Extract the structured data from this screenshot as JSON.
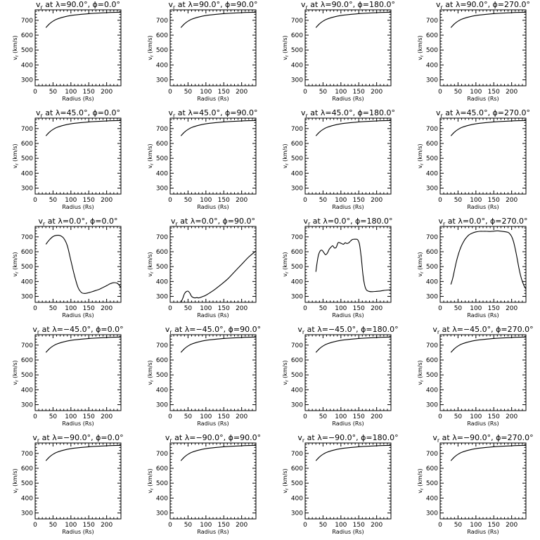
{
  "figure": {
    "xlabel": "Radius (Rs)",
    "ylabel": "v",
    "ylabel_sub": "r",
    "ylabel_unit": " (km/s)",
    "x_ticks": [
      0,
      50,
      100,
      150,
      200
    ],
    "y_ticks": [
      300,
      400,
      500,
      600,
      700
    ],
    "xlim": [
      0,
      240
    ],
    "ylim": [
      260,
      770
    ]
  },
  "chart_data": [
    {
      "type": "line",
      "title": "vr at λ=90.0°, ϕ=0.0°",
      "lat": "90.0",
      "lon": "0.0",
      "x": [
        30,
        40,
        50,
        60,
        80,
        100,
        130,
        160,
        200,
        240
      ],
      "y": [
        651,
        676,
        694,
        707,
        722,
        732,
        740,
        746,
        751,
        754
      ],
      "xlim": [
        0,
        240
      ],
      "ylim": [
        260,
        770
      ],
      "xlabel": "Radius (Rs)",
      "ylabel": "vr (km/s)"
    },
    {
      "type": "line",
      "title": "vr at λ=90.0°, ϕ=90.0°",
      "lat": "90.0",
      "lon": "90.0",
      "x": [
        30,
        40,
        50,
        60,
        80,
        100,
        130,
        160,
        200,
        240
      ],
      "y": [
        651,
        676,
        694,
        707,
        722,
        732,
        740,
        746,
        751,
        754
      ],
      "xlim": [
        0,
        240
      ],
      "ylim": [
        260,
        770
      ],
      "xlabel": "Radius (Rs)",
      "ylabel": "vr (km/s)"
    },
    {
      "type": "line",
      "title": "vr at λ=90.0°, ϕ=180.0°",
      "lat": "90.0",
      "lon": "180.0",
      "x": [
        30,
        40,
        50,
        60,
        80,
        100,
        130,
        160,
        200,
        240
      ],
      "y": [
        651,
        676,
        694,
        707,
        722,
        732,
        740,
        746,
        751,
        754
      ],
      "xlim": [
        0,
        240
      ],
      "ylim": [
        260,
        770
      ],
      "xlabel": "Radius (Rs)",
      "ylabel": "vr (km/s)"
    },
    {
      "type": "line",
      "title": "vr at λ=90.0°, ϕ=270.0°",
      "lat": "90.0",
      "lon": "270.0",
      "x": [
        30,
        40,
        50,
        60,
        80,
        100,
        130,
        160,
        200,
        240
      ],
      "y": [
        651,
        676,
        694,
        707,
        722,
        732,
        740,
        746,
        751,
        754
      ],
      "xlim": [
        0,
        240
      ],
      "ylim": [
        260,
        770
      ],
      "xlabel": "Radius (Rs)",
      "ylabel": "vr (km/s)"
    },
    {
      "type": "line",
      "title": "vr at λ=45.0°, ϕ=0.0°",
      "lat": "45.0",
      "lon": "0.0",
      "x": [
        30,
        40,
        50,
        60,
        80,
        100,
        130,
        160,
        200,
        240
      ],
      "y": [
        651,
        676,
        694,
        707,
        722,
        732,
        740,
        746,
        751,
        754
      ],
      "xlim": [
        0,
        240
      ],
      "ylim": [
        260,
        770
      ],
      "xlabel": "Radius (Rs)",
      "ylabel": "vr (km/s)"
    },
    {
      "type": "line",
      "title": "vr at λ=45.0°, ϕ=90.0°",
      "lat": "45.0",
      "lon": "90.0",
      "x": [
        30,
        40,
        50,
        60,
        80,
        100,
        130,
        160,
        200,
        240
      ],
      "y": [
        651,
        676,
        694,
        707,
        722,
        732,
        740,
        746,
        751,
        754
      ],
      "xlim": [
        0,
        240
      ],
      "ylim": [
        260,
        770
      ],
      "xlabel": "Radius (Rs)",
      "ylabel": "vr (km/s)"
    },
    {
      "type": "line",
      "title": "vr at λ=45.0°, ϕ=180.0°",
      "lat": "45.0",
      "lon": "180.0",
      "x": [
        30,
        40,
        50,
        60,
        80,
        100,
        130,
        160,
        200,
        240
      ],
      "y": [
        651,
        676,
        694,
        707,
        722,
        732,
        740,
        746,
        751,
        754
      ],
      "xlim": [
        0,
        240
      ],
      "ylim": [
        260,
        770
      ],
      "xlabel": "Radius (Rs)",
      "ylabel": "vr (km/s)"
    },
    {
      "type": "line",
      "title": "vr at λ=45.0°, ϕ=270.0°",
      "lat": "45.0",
      "lon": "270.0",
      "x": [
        30,
        40,
        50,
        60,
        80,
        100,
        130,
        160,
        200,
        240
      ],
      "y": [
        651,
        676,
        694,
        707,
        722,
        732,
        740,
        746,
        751,
        754
      ],
      "xlim": [
        0,
        240
      ],
      "ylim": [
        260,
        770
      ],
      "xlabel": "Radius (Rs)",
      "ylabel": "vr (km/s)"
    },
    {
      "type": "line",
      "title": "vr at λ=0.0°, ϕ=0.0°",
      "lat": "0.0",
      "lon": "0.0",
      "x": [
        30,
        40,
        50,
        60,
        70,
        80,
        90,
        100,
        110,
        120,
        130,
        140,
        150,
        160,
        170,
        180,
        190,
        200,
        210,
        220,
        230,
        240
      ],
      "y": [
        650,
        680,
        702,
        710,
        708,
        690,
        640,
        540,
        440,
        360,
        325,
        320,
        325,
        332,
        340,
        348,
        360,
        372,
        385,
        392,
        388,
        360
      ],
      "xlim": [
        0,
        240
      ],
      "ylim": [
        260,
        770
      ],
      "xlabel": "Radius (Rs)",
      "ylabel": "vr (km/s)"
    },
    {
      "type": "line",
      "title": "vr at λ=0.0°, ϕ=90.0°",
      "lat": "0.0",
      "lon": "90.0",
      "x": [
        30,
        35,
        40,
        45,
        50,
        55,
        60,
        65,
        70,
        75,
        80,
        90,
        100,
        120,
        140,
        160,
        180,
        200,
        220,
        240
      ],
      "y": [
        260,
        285,
        318,
        332,
        335,
        322,
        300,
        292,
        290,
        292,
        290,
        298,
        308,
        338,
        375,
        415,
        465,
        515,
        565,
        605
      ],
      "xlim": [
        0,
        240
      ],
      "ylim": [
        260,
        770
      ],
      "xlabel": "Radius (Rs)",
      "ylabel": "vr (km/s)"
    },
    {
      "type": "line",
      "title": "vr at λ=0.0°, ϕ=180.0°",
      "lat": "0.0",
      "lon": "180.0",
      "x": [
        30,
        33,
        37,
        42,
        47,
        52,
        57,
        62,
        67,
        72,
        77,
        82,
        87,
        92,
        97,
        102,
        107,
        112,
        117,
        122,
        127,
        132,
        137,
        142,
        147,
        152,
        157,
        162,
        167,
        172,
        180,
        190,
        200,
        210,
        220,
        240
      ],
      "y": [
        465,
        520,
        575,
        605,
        610,
        595,
        580,
        590,
        615,
        630,
        640,
        625,
        630,
        660,
        660,
        655,
        650,
        660,
        655,
        660,
        672,
        682,
        684,
        684,
        680,
        650,
        560,
        440,
        370,
        342,
        333,
        332,
        334,
        336,
        340,
        345
      ],
      "xlim": [
        0,
        240
      ],
      "ylim": [
        260,
        770
      ],
      "xlabel": "Radius (Rs)",
      "ylabel": "vr (km/s)"
    },
    {
      "type": "line",
      "title": "vr at λ=0.0°, ϕ=270.0°",
      "lat": "0.0",
      "lon": "270.0",
      "x": [
        30,
        35,
        40,
        45,
        50,
        55,
        60,
        65,
        70,
        80,
        90,
        100,
        110,
        120,
        130,
        140,
        150,
        160,
        170,
        180,
        190,
        195,
        200,
        205,
        210,
        215,
        220,
        225,
        230,
        235,
        240
      ],
      "y": [
        380,
        420,
        475,
        530,
        575,
        612,
        642,
        665,
        685,
        712,
        725,
        733,
        737,
        737,
        737,
        736,
        738,
        740,
        738,
        735,
        730,
        720,
        702,
        670,
        620,
        560,
        495,
        440,
        400,
        370,
        350
      ],
      "xlim": [
        0,
        240
      ],
      "ylim": [
        260,
        770
      ],
      "xlabel": "Radius (Rs)",
      "ylabel": "vr (km/s)"
    },
    {
      "type": "line",
      "title": "vr at λ=−45.0°, ϕ=0.0°",
      "lat": "−45.0",
      "lon": "0.0",
      "x": [
        30,
        40,
        50,
        60,
        80,
        100,
        130,
        160,
        200,
        240
      ],
      "y": [
        651,
        676,
        694,
        707,
        722,
        732,
        740,
        746,
        751,
        754
      ],
      "xlim": [
        0,
        240
      ],
      "ylim": [
        260,
        770
      ],
      "xlabel": "Radius (Rs)",
      "ylabel": "vr (km/s)"
    },
    {
      "type": "line",
      "title": "vr at λ=−45.0°, ϕ=90.0°",
      "lat": "−45.0",
      "lon": "90.0",
      "x": [
        30,
        40,
        50,
        60,
        80,
        100,
        130,
        160,
        200,
        240
      ],
      "y": [
        651,
        676,
        694,
        707,
        722,
        732,
        740,
        746,
        751,
        754
      ],
      "xlim": [
        0,
        240
      ],
      "ylim": [
        260,
        770
      ],
      "xlabel": "Radius (Rs)",
      "ylabel": "vr (km/s)"
    },
    {
      "type": "line",
      "title": "vr at λ=−45.0°, ϕ=180.0°",
      "lat": "−45.0",
      "lon": "180.0",
      "x": [
        30,
        40,
        50,
        60,
        80,
        100,
        130,
        160,
        200,
        240
      ],
      "y": [
        651,
        676,
        694,
        707,
        722,
        732,
        740,
        746,
        751,
        754
      ],
      "xlim": [
        0,
        240
      ],
      "ylim": [
        260,
        770
      ],
      "xlabel": "Radius (Rs)",
      "ylabel": "vr (km/s)"
    },
    {
      "type": "line",
      "title": "vr at λ=−45.0°, ϕ=270.0°",
      "lat": "−45.0",
      "lon": "270.0",
      "x": [
        30,
        40,
        50,
        60,
        80,
        100,
        130,
        160,
        200,
        240
      ],
      "y": [
        651,
        676,
        694,
        707,
        722,
        732,
        740,
        746,
        751,
        754
      ],
      "xlim": [
        0,
        240
      ],
      "ylim": [
        260,
        770
      ],
      "xlabel": "Radius (Rs)",
      "ylabel": "vr (km/s)"
    },
    {
      "type": "line",
      "title": "vr at λ=−90.0°, ϕ=0.0°",
      "lat": "−90.0",
      "lon": "0.0",
      "x": [
        30,
        40,
        50,
        60,
        80,
        100,
        130,
        160,
        200,
        240
      ],
      "y": [
        651,
        676,
        694,
        707,
        722,
        732,
        740,
        746,
        751,
        754
      ],
      "xlim": [
        0,
        240
      ],
      "ylim": [
        260,
        770
      ],
      "xlabel": "Radius (Rs)",
      "ylabel": "vr (km/s)"
    },
    {
      "type": "line",
      "title": "vr at λ=−90.0°, ϕ=90.0°",
      "lat": "−90.0",
      "lon": "90.0",
      "x": [
        30,
        40,
        50,
        60,
        80,
        100,
        130,
        160,
        200,
        240
      ],
      "y": [
        651,
        676,
        694,
        707,
        722,
        732,
        740,
        746,
        751,
        754
      ],
      "xlim": [
        0,
        240
      ],
      "ylim": [
        260,
        770
      ],
      "xlabel": "Radius (Rs)",
      "ylabel": "vr (km/s)"
    },
    {
      "type": "line",
      "title": "vr at λ=−90.0°, ϕ=180.0°",
      "lat": "−90.0",
      "lon": "180.0",
      "x": [
        30,
        40,
        50,
        60,
        80,
        100,
        130,
        160,
        200,
        240
      ],
      "y": [
        651,
        676,
        694,
        707,
        722,
        732,
        740,
        746,
        751,
        754
      ],
      "xlim": [
        0,
        240
      ],
      "ylim": [
        260,
        770
      ],
      "xlabel": "Radius (Rs)",
      "ylabel": "vr (km/s)"
    },
    {
      "type": "line",
      "title": "vr at λ=−90.0°, ϕ=270.0°",
      "lat": "−90.0",
      "lon": "270.0",
      "x": [
        30,
        40,
        50,
        60,
        80,
        100,
        130,
        160,
        200,
        240
      ],
      "y": [
        651,
        676,
        694,
        707,
        722,
        732,
        740,
        746,
        751,
        754
      ],
      "xlim": [
        0,
        240
      ],
      "ylim": [
        260,
        770
      ],
      "xlabel": "Radius (Rs)",
      "ylabel": "vr (km/s)"
    }
  ]
}
